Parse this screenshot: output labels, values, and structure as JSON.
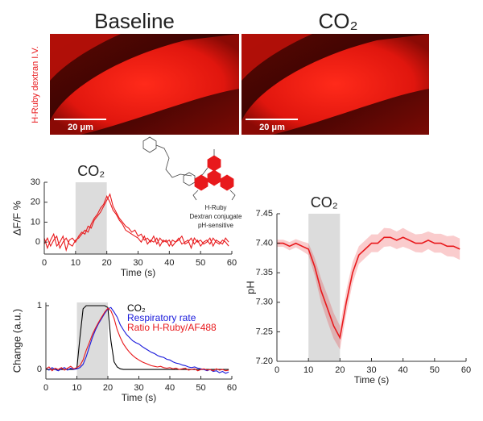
{
  "images": {
    "titles": [
      "Baseline",
      "CO₂"
    ],
    "side_label": "H-Ruby dextran I.V.",
    "scale_bars": [
      "20 μm",
      "20 μm"
    ]
  },
  "structure_labels": [
    "H-Ruby",
    "Dextran conjugate",
    "pH-sensitive"
  ],
  "chart_data": [
    {
      "type": "line",
      "ylabel": "ΔF/F %",
      "xlabel": "Time (s)",
      "shade": [
        10,
        20
      ],
      "shade_label": "CO₂",
      "x": [
        0,
        1,
        2,
        3,
        4,
        5,
        6,
        7,
        8,
        9,
        10,
        11,
        12,
        13,
        14,
        15,
        16,
        17,
        18,
        19,
        20,
        21,
        22,
        23,
        24,
        25,
        26,
        27,
        28,
        29,
        30,
        31,
        32,
        33,
        34,
        35,
        36,
        37,
        38,
        39,
        40,
        41,
        42,
        43,
        44,
        45,
        46,
        47,
        48,
        49,
        50,
        51,
        52,
        53,
        54,
        55,
        56,
        57,
        58,
        59
      ],
      "series": [
        {
          "color": "#e8191c",
          "values": [
            2,
            -3,
            1,
            4,
            -2,
            0,
            3,
            -4,
            1,
            2,
            0,
            3,
            5,
            4,
            8,
            7,
            11,
            13,
            15,
            18,
            21,
            24,
            18,
            15,
            12,
            10,
            8,
            7,
            5,
            6,
            3,
            4,
            1,
            2,
            0,
            3,
            -1,
            2,
            0,
            1,
            -2,
            1,
            0,
            2,
            -1,
            0,
            1,
            -3,
            2,
            0,
            1,
            -1,
            0,
            2,
            -2,
            1,
            0,
            -1,
            2,
            0
          ]
        },
        {
          "color": "#e8191c",
          "values": [
            -1,
            2,
            -2,
            1,
            3,
            -3,
            0,
            2,
            -1,
            -2,
            1,
            2,
            4,
            6,
            5,
            9,
            12,
            14,
            17,
            19,
            23,
            20,
            16,
            14,
            11,
            9,
            6,
            5,
            4,
            3,
            2,
            0,
            3,
            -1,
            1,
            0,
            2,
            -2,
            1,
            0,
            1,
            -2,
            0,
            1,
            3,
            -1,
            0,
            2,
            -1,
            1,
            -2,
            0,
            1,
            -1,
            2,
            0,
            -1,
            1,
            0,
            -2
          ]
        }
      ],
      "xlim": [
        0,
        60
      ],
      "xticks": [
        0,
        10,
        20,
        30,
        40,
        50,
        60
      ],
      "ylim": [
        -6,
        30
      ],
      "yticks": [
        0,
        10,
        20,
        30
      ]
    },
    {
      "type": "line",
      "ylabel": "Change (a.u.)",
      "xlabel": "Time (s)",
      "shade": [
        10,
        20
      ],
      "legend": "upper right",
      "x": [
        0,
        1,
        2,
        3,
        4,
        5,
        6,
        7,
        8,
        9,
        10,
        11,
        12,
        13,
        14,
        15,
        16,
        17,
        18,
        19,
        20,
        21,
        22,
        23,
        24,
        25,
        26,
        27,
        28,
        29,
        30,
        31,
        32,
        33,
        34,
        35,
        36,
        37,
        38,
        39,
        40,
        41,
        42,
        43,
        44,
        45,
        46,
        47,
        48,
        49,
        50,
        51,
        52,
        53,
        54,
        55,
        56,
        57,
        58,
        59
      ],
      "series": [
        {
          "name": "CO₂",
          "color": "#000000",
          "values": [
            0,
            0,
            0,
            0,
            0,
            0,
            0,
            0,
            0,
            0,
            0.02,
            0.5,
            0.95,
            1,
            1,
            1,
            1,
            1,
            1,
            1,
            0.97,
            0.45,
            0.12,
            0.04,
            0.01,
            0,
            0,
            0,
            0,
            0,
            0,
            0,
            0,
            0,
            0,
            0,
            0,
            0,
            0,
            0,
            0,
            0,
            0,
            0,
            0,
            0,
            0,
            0,
            0,
            0,
            0,
            0,
            0,
            0,
            0,
            0,
            0,
            0,
            0,
            0
          ]
        },
        {
          "name": "Respiratory rate",
          "color": "#1a1adb",
          "values": [
            0.02,
            -0.01,
            0.03,
            0,
            -0.02,
            0.01,
            0.03,
            -0.01,
            0.02,
            0,
            0.01,
            0.03,
            0.08,
            0.2,
            0.35,
            0.5,
            0.62,
            0.72,
            0.8,
            0.88,
            0.95,
            0.97,
            0.9,
            0.82,
            0.7,
            0.62,
            0.55,
            0.5,
            0.45,
            0.42,
            0.4,
            0.36,
            0.33,
            0.3,
            0.27,
            0.25,
            0.22,
            0.2,
            0.19,
            0.16,
            0.15,
            0.12,
            0.1,
            0.09,
            0.07,
            0.06,
            0.04,
            0.03,
            0.04,
            0.02,
            0.01,
            0,
            -0.02,
            0,
            -0.03,
            -0.02,
            -0.05,
            -0.03,
            -0.06,
            -0.04
          ]
        },
        {
          "name": "Ratio H-Ruby/AF488",
          "color": "#e8191c",
          "values": [
            0.01,
            0.04,
            -0.02,
            0.02,
            0,
            0.03,
            -0.01,
            0.02,
            0.05,
            0.01,
            0.03,
            0.06,
            0.15,
            0.3,
            0.42,
            0.55,
            0.65,
            0.74,
            0.82,
            0.9,
            0.96,
            0.92,
            0.8,
            0.62,
            0.5,
            0.4,
            0.33,
            0.27,
            0.22,
            0.18,
            0.15,
            0.12,
            0.1,
            0.08,
            0.06,
            0.05,
            0.04,
            0.05,
            0.03,
            0.02,
            0.03,
            0.01,
            0.02,
            0,
            0.01,
            0.02,
            -0.01,
            0,
            0.01,
            -0.02,
            0,
            0.01,
            -0.01,
            0,
            -0.02,
            0.01,
            -0.01,
            0,
            -0.02,
            -0.01
          ]
        }
      ],
      "xlim": [
        0,
        60
      ],
      "xticks": [
        0,
        10,
        20,
        30,
        40,
        50,
        60
      ],
      "ylim": [
        -0.15,
        1.05
      ],
      "yticks": [
        0,
        1
      ]
    },
    {
      "type": "line",
      "ylabel": "pH",
      "xlabel": "Time (s)",
      "shade": [
        10,
        20
      ],
      "shade_label": "CO₂",
      "x": [
        0,
        2,
        4,
        6,
        8,
        10,
        12,
        14,
        16,
        18,
        20,
        22,
        24,
        26,
        28,
        30,
        32,
        34,
        36,
        38,
        40,
        42,
        44,
        46,
        48,
        50,
        52,
        54,
        56,
        58
      ],
      "series": [
        {
          "color": "#e8191c",
          "values": [
            7.4,
            7.4,
            7.395,
            7.4,
            7.395,
            7.39,
            7.36,
            7.32,
            7.29,
            7.26,
            7.24,
            7.3,
            7.35,
            7.38,
            7.39,
            7.4,
            7.4,
            7.41,
            7.41,
            7.405,
            7.41,
            7.405,
            7.4,
            7.4,
            7.405,
            7.4,
            7.4,
            7.395,
            7.395,
            7.39
          ],
          "error": [
            0.006,
            0.006,
            0.007,
            0.007,
            0.008,
            0.01,
            0.015,
            0.02,
            0.022,
            0.022,
            0.02,
            0.02,
            0.018,
            0.015,
            0.015,
            0.015,
            0.015,
            0.016,
            0.015,
            0.015,
            0.016,
            0.015,
            0.015,
            0.016,
            0.015,
            0.016,
            0.016,
            0.017,
            0.018,
            0.018
          ]
        }
      ],
      "xlim": [
        0,
        60
      ],
      "xticks": [
        0,
        10,
        20,
        30,
        40,
        50,
        60
      ],
      "ylim": [
        7.2,
        7.45
      ],
      "yticks": [
        {
          "value": 7.2,
          "label": "7.20"
        },
        7.25,
        {
          "value": 7.3,
          "label": "7.30"
        },
        7.35,
        {
          "value": 7.4,
          "label": "7.40"
        },
        7.45
      ]
    }
  ]
}
